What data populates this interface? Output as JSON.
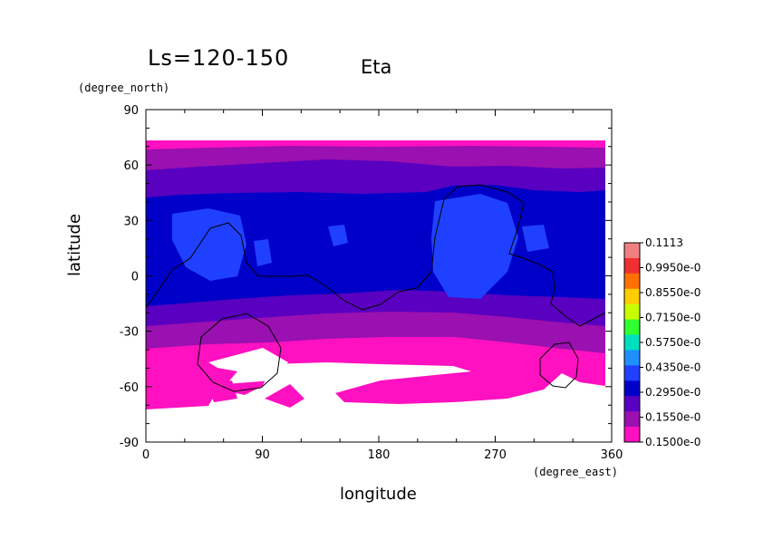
{
  "header": {
    "ls_label": "Ls=120-150"
  },
  "chart_data": {
    "type": "heatmap",
    "title": "Eta",
    "xlabel": "longitude",
    "ylabel": "latitude",
    "x_unit": "(degree_east)",
    "y_unit": "(degree_north)",
    "xlim": [
      0,
      360
    ],
    "ylim": [
      -90,
      90
    ],
    "x_ticks": [
      "0",
      "90",
      "180",
      "270",
      "360"
    ],
    "y_ticks": [
      "90",
      "60",
      "30",
      "0",
      "-30",
      "-60",
      "-90"
    ],
    "colorbar": {
      "labels": [
        "0.1113",
        "0.9950e-0",
        "0.8550e-0",
        "0.7150e-0",
        "0.5750e-0",
        "0.4350e-0",
        "0.2950e-0",
        "0.1550e-0",
        "0.1500e-0"
      ],
      "colors": [
        "#f08080",
        "#f03030",
        "#ff7000",
        "#ffcc00",
        "#c8ff00",
        "#30ff30",
        "#00e0c0",
        "#2090ff",
        "#2040ff",
        "#0000c8",
        "#5a00c0",
        "#9a10b0",
        "#ff10c0"
      ]
    },
    "fill_levels": {
      "magenta": "#ff10c0",
      "purple": "#9a10b0",
      "violet": "#5a00c0",
      "navy": "#0000c8",
      "blue": "#2040ff"
    }
  }
}
